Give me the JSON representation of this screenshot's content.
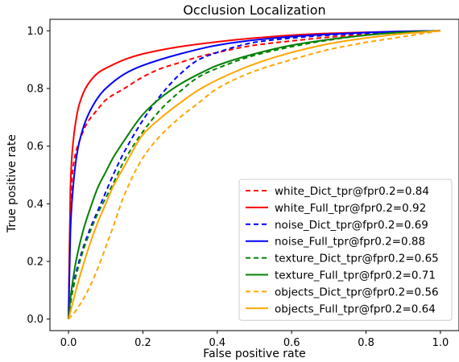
{
  "chart_data": {
    "type": "line",
    "title": "Occlusion Localization",
    "xlabel": "False positive rate",
    "ylabel": "True positive rate",
    "xlim": [
      -0.05,
      1.05
    ],
    "ylim": [
      -0.04,
      1.04
    ],
    "xticks": [
      0.0,
      0.2,
      0.4,
      0.6,
      0.8,
      1.0
    ],
    "yticks": [
      0.0,
      0.2,
      0.4,
      0.6,
      0.8,
      1.0
    ],
    "xtick_labels": [
      "0.0",
      "0.2",
      "0.4",
      "0.6",
      "0.8",
      "1.0"
    ],
    "ytick_labels": [
      "0.0",
      "0.2",
      "0.4",
      "0.6",
      "0.8",
      "1.0"
    ],
    "grid": false,
    "legend_position": "lower right",
    "series": [
      {
        "name": "white_Dict_tpr@fpr0.2=0.84",
        "color": "#ff0000",
        "dash": "dashed",
        "x": [
          0.0,
          0.005,
          0.01,
          0.02,
          0.03,
          0.05,
          0.08,
          0.1,
          0.15,
          0.2,
          0.25,
          0.3,
          0.35,
          0.4,
          0.5,
          0.6,
          0.7,
          0.8,
          0.9,
          1.0
        ],
        "y": [
          0.0,
          0.35,
          0.5,
          0.58,
          0.62,
          0.68,
          0.73,
          0.76,
          0.8,
          0.84,
          0.87,
          0.89,
          0.91,
          0.925,
          0.95,
          0.965,
          0.978,
          0.988,
          0.995,
          1.0
        ]
      },
      {
        "name": "white_Full_tpr@fpr0.2=0.92",
        "color": "#ff0000",
        "dash": "solid",
        "x": [
          0.0,
          0.005,
          0.01,
          0.02,
          0.03,
          0.05,
          0.08,
          0.1,
          0.15,
          0.2,
          0.3,
          0.4,
          0.5,
          0.6,
          0.7,
          0.8,
          0.9,
          1.0
        ],
        "y": [
          0.0,
          0.45,
          0.58,
          0.69,
          0.75,
          0.81,
          0.855,
          0.87,
          0.9,
          0.92,
          0.945,
          0.962,
          0.975,
          0.985,
          0.991,
          0.995,
          0.998,
          1.0
        ]
      },
      {
        "name": "noise_Dict_tpr@fpr0.2=0.69",
        "color": "#0000ff",
        "dash": "dashed",
        "x": [
          0.0,
          0.005,
          0.01,
          0.02,
          0.04,
          0.06,
          0.08,
          0.1,
          0.12,
          0.15,
          0.2,
          0.25,
          0.3,
          0.35,
          0.4,
          0.45,
          0.5,
          0.6,
          0.7,
          0.8,
          0.9,
          1.0
        ],
        "y": [
          0.0,
          0.06,
          0.1,
          0.16,
          0.25,
          0.32,
          0.38,
          0.44,
          0.5,
          0.58,
          0.69,
          0.78,
          0.85,
          0.9,
          0.925,
          0.945,
          0.96,
          0.975,
          0.985,
          0.992,
          0.997,
          1.0
        ]
      },
      {
        "name": "noise_Full_tpr@fpr0.2=0.88",
        "color": "#0000ff",
        "dash": "solid",
        "x": [
          0.0,
          0.005,
          0.01,
          0.02,
          0.03,
          0.05,
          0.08,
          0.1,
          0.15,
          0.2,
          0.3,
          0.4,
          0.5,
          0.6,
          0.7,
          0.8,
          0.9,
          1.0
        ],
        "y": [
          0.0,
          0.3,
          0.42,
          0.55,
          0.62,
          0.7,
          0.77,
          0.8,
          0.85,
          0.88,
          0.92,
          0.95,
          0.968,
          0.98,
          0.988,
          0.994,
          0.998,
          1.0
        ]
      },
      {
        "name": "texture_Dict_tpr@fpr0.2=0.65",
        "color": "#008000",
        "dash": "dashed",
        "x": [
          0.0,
          0.005,
          0.01,
          0.02,
          0.04,
          0.06,
          0.08,
          0.1,
          0.12,
          0.15,
          0.2,
          0.25,
          0.3,
          0.35,
          0.4,
          0.5,
          0.6,
          0.7,
          0.8,
          0.9,
          1.0
        ],
        "y": [
          0.0,
          0.05,
          0.09,
          0.15,
          0.24,
          0.31,
          0.37,
          0.42,
          0.47,
          0.55,
          0.65,
          0.73,
          0.79,
          0.84,
          0.87,
          0.915,
          0.945,
          0.968,
          0.985,
          0.995,
          1.0
        ]
      },
      {
        "name": "texture_Full_tpr@fpr0.2=0.71",
        "color": "#008000",
        "dash": "solid",
        "x": [
          0.0,
          0.005,
          0.01,
          0.02,
          0.04,
          0.06,
          0.08,
          0.1,
          0.12,
          0.15,
          0.2,
          0.25,
          0.3,
          0.35,
          0.4,
          0.5,
          0.6,
          0.7,
          0.8,
          0.9,
          1.0
        ],
        "y": [
          0.0,
          0.07,
          0.12,
          0.2,
          0.31,
          0.39,
          0.46,
          0.51,
          0.56,
          0.62,
          0.71,
          0.77,
          0.815,
          0.85,
          0.88,
          0.92,
          0.95,
          0.97,
          0.985,
          0.995,
          1.0
        ]
      },
      {
        "name": "objects_Dict_tpr@fpr0.2=0.56",
        "color": "#ffa500",
        "dash": "dashed",
        "x": [
          0.0,
          0.02,
          0.04,
          0.06,
          0.08,
          0.1,
          0.12,
          0.15,
          0.2,
          0.25,
          0.3,
          0.35,
          0.4,
          0.5,
          0.6,
          0.7,
          0.8,
          0.9,
          1.0
        ],
        "y": [
          0.0,
          0.03,
          0.07,
          0.12,
          0.18,
          0.25,
          0.32,
          0.43,
          0.56,
          0.64,
          0.7,
          0.75,
          0.8,
          0.86,
          0.9,
          0.935,
          0.96,
          0.98,
          1.0
        ]
      },
      {
        "name": "objects_Full_tpr@fpr0.2=0.64",
        "color": "#ffa500",
        "dash": "solid",
        "x": [
          0.0,
          0.01,
          0.02,
          0.04,
          0.06,
          0.08,
          0.1,
          0.12,
          0.15,
          0.2,
          0.25,
          0.3,
          0.35,
          0.4,
          0.5,
          0.6,
          0.7,
          0.8,
          0.9,
          1.0
        ],
        "y": [
          0.0,
          0.05,
          0.1,
          0.19,
          0.27,
          0.34,
          0.4,
          0.46,
          0.53,
          0.64,
          0.7,
          0.75,
          0.795,
          0.83,
          0.885,
          0.925,
          0.955,
          0.975,
          0.99,
          1.0
        ]
      }
    ]
  }
}
